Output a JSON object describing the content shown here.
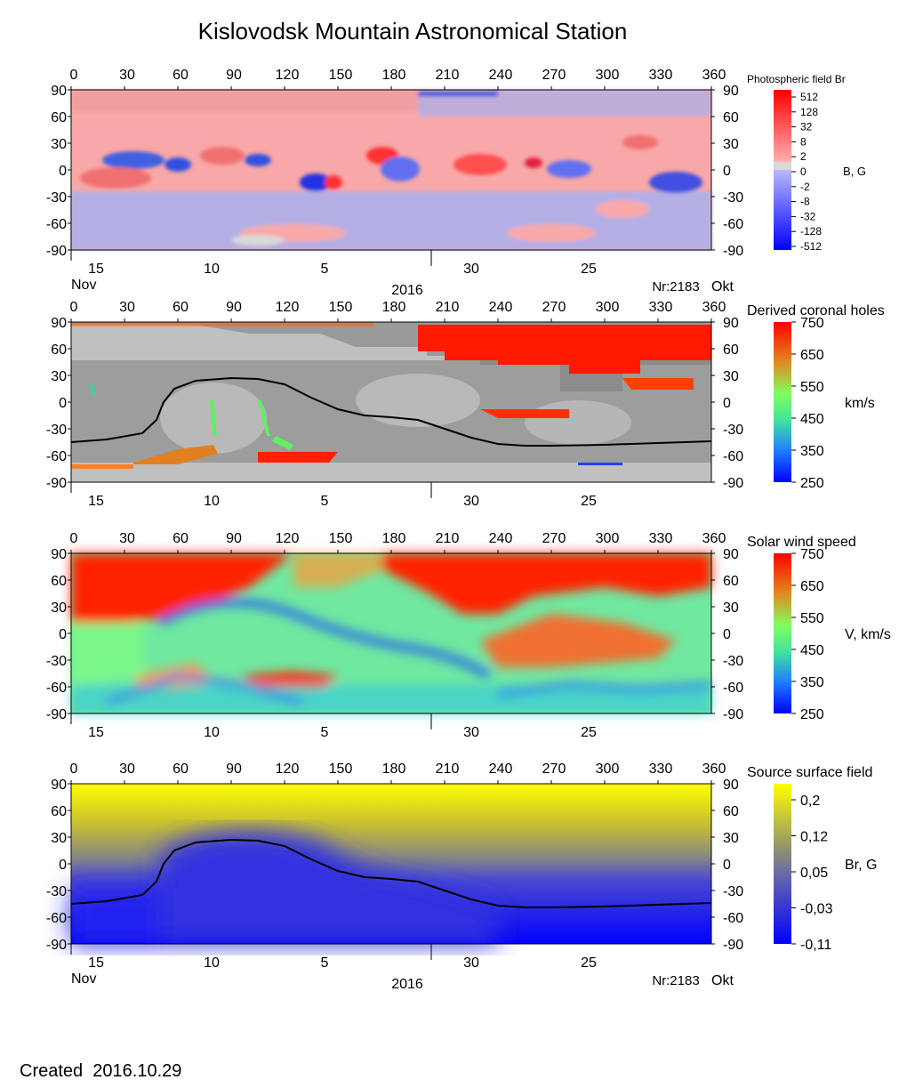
{
  "title": "Kislovodsk Mountain Astronomical Station",
  "created_label": "Created",
  "created_date": "2016.10.29",
  "chart_data": [
    {
      "type": "heatmap",
      "title": "Photospheric field Br",
      "colorbar_label": "B, G",
      "x_ticks": [
        "0",
        "30",
        "60",
        "90",
        "120",
        "150",
        "180",
        "210",
        "240",
        "270",
        "300",
        "330",
        "360"
      ],
      "y_ticks": [
        "90",
        "60",
        "30",
        "0",
        "-30",
        "-60",
        "-90"
      ],
      "xlim": [
        0,
        360
      ],
      "ylim": [
        -90,
        90
      ],
      "date_ticks": [
        "15",
        "10",
        "5",
        "30",
        "25"
      ],
      "bottom_labels": {
        "month_left": "Nov",
        "year": "2016",
        "rotation": "Nr:2183",
        "month_right": "Okt"
      },
      "colorbar_ticks": [
        "512",
        "128",
        "32",
        "8",
        "2",
        "0",
        "-2",
        "-8",
        "-32",
        "-128",
        "-512"
      ],
      "colors": {
        "positive": "#ff0000",
        "negative": "#0000ff",
        "zero": "#d9d9d9"
      }
    },
    {
      "type": "heatmap",
      "title": "Derived coronal holes",
      "colorbar_label": "km/s",
      "x_ticks": [
        "0",
        "30",
        "60",
        "90",
        "120",
        "150",
        "180",
        "210",
        "240",
        "270",
        "300",
        "330",
        "360"
      ],
      "y_ticks": [
        "90",
        "60",
        "30",
        "0",
        "-30",
        "-60",
        "-90"
      ],
      "xlim": [
        0,
        360
      ],
      "ylim": [
        -90,
        90
      ],
      "date_ticks": [
        "15",
        "10",
        "5",
        "30",
        "25"
      ],
      "colorbar_ticks": [
        "750",
        "650",
        "550",
        "450",
        "350",
        "250"
      ],
      "colorbar_range": [
        250,
        750
      ],
      "neutral_line": {
        "x": [
          0,
          20,
          40,
          48,
          52,
          58,
          70,
          90,
          105,
          120,
          135,
          150,
          165,
          180,
          195,
          210,
          225,
          240,
          255,
          270,
          300,
          330,
          360
        ],
        "y": [
          -45,
          -42,
          -35,
          -20,
          0,
          15,
          24,
          27,
          26,
          20,
          5,
          -8,
          -15,
          -17,
          -20,
          -30,
          -40,
          -47,
          -49,
          -49,
          -48,
          -46,
          -44
        ]
      }
    },
    {
      "type": "heatmap",
      "title": "Solar wind speed",
      "colorbar_label": "V, km/s",
      "x_ticks": [
        "0",
        "30",
        "60",
        "90",
        "120",
        "150",
        "180",
        "210",
        "240",
        "270",
        "300",
        "330",
        "360"
      ],
      "y_ticks": [
        "90",
        "60",
        "30",
        "0",
        "-30",
        "-60",
        "-90"
      ],
      "xlim": [
        0,
        360
      ],
      "ylim": [
        -90,
        90
      ],
      "date_ticks": [
        "15",
        "10",
        "5",
        "30",
        "25"
      ],
      "colorbar_ticks": [
        "750",
        "650",
        "550",
        "450",
        "350",
        "250"
      ],
      "colorbar_range": [
        250,
        750
      ]
    },
    {
      "type": "heatmap",
      "title": "Source surface field",
      "colorbar_label": "Br, G",
      "x_ticks": [
        "0",
        "30",
        "60",
        "90",
        "120",
        "150",
        "180",
        "210",
        "240",
        "270",
        "300",
        "330",
        "360"
      ],
      "y_ticks": [
        "90",
        "60",
        "30",
        "0",
        "-30",
        "-60",
        "-90"
      ],
      "xlim": [
        0,
        360
      ],
      "ylim": [
        -90,
        90
      ],
      "date_ticks": [
        "15",
        "10",
        "5",
        "30",
        "25"
      ],
      "bottom_labels": {
        "month_left": "Nov",
        "year": "2016",
        "rotation": "Nr:2183",
        "month_right": "Okt"
      },
      "colorbar_ticks": [
        "0,2",
        "0,12",
        "0,05",
        "-0,03",
        "-0,11"
      ],
      "neutral_line": {
        "x": [
          0,
          20,
          40,
          48,
          52,
          58,
          70,
          90,
          105,
          120,
          135,
          150,
          165,
          180,
          195,
          210,
          225,
          240,
          255,
          270,
          300,
          330,
          360
        ],
        "y": [
          -45,
          -42,
          -35,
          -20,
          0,
          15,
          24,
          27,
          26,
          20,
          5,
          -8,
          -15,
          -17,
          -20,
          -30,
          -40,
          -47,
          -49,
          -49,
          -48,
          -46,
          -44
        ]
      }
    }
  ]
}
